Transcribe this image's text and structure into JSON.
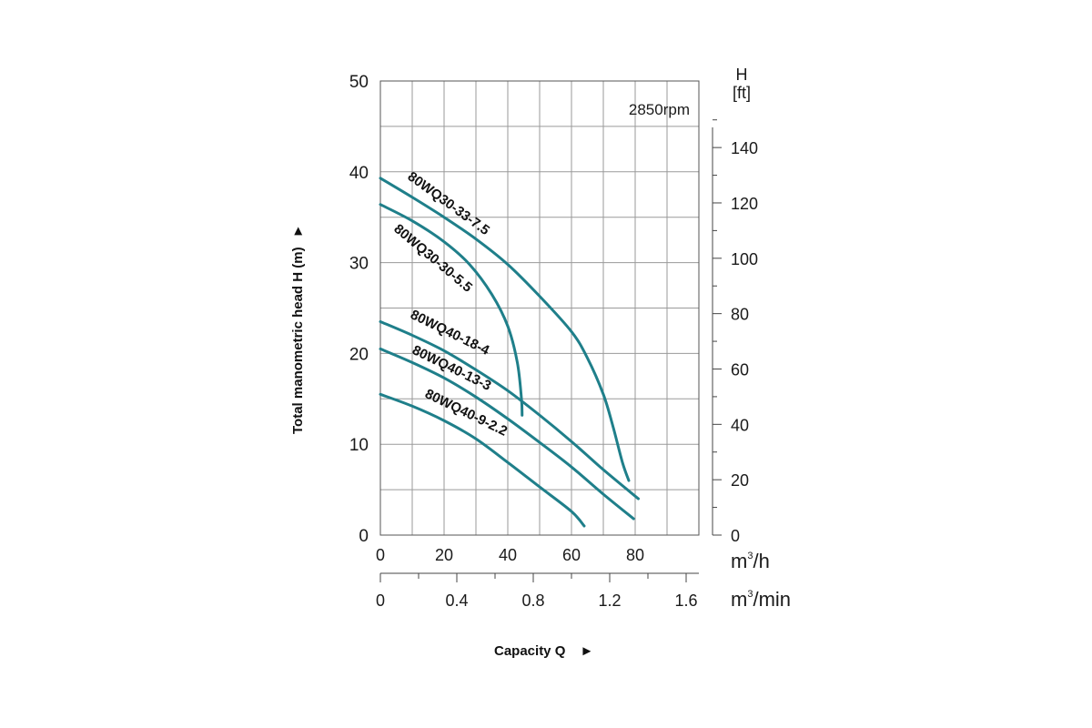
{
  "chart_data": {
    "type": "line",
    "speed_note": "2850rpm",
    "ylabel": "Total manometric head H (m)",
    "ylabel_arrow": "►",
    "xlabel": "Capacity Q",
    "xlabel_arrow": "►",
    "x_unit_m3h": {
      "base": "m",
      "sup": "3",
      "rest": "/h"
    },
    "x_unit_m3min": {
      "base": "m",
      "sup": "3",
      "rest": "/min"
    },
    "y_right_unit_top": "H",
    "y_right_unit_bottom": "[ft]",
    "xlim": [
      0,
      100
    ],
    "ylim": [
      0,
      50
    ],
    "grid": true,
    "y_ticks": [
      "0",
      "10",
      "20",
      "30",
      "40",
      "50"
    ],
    "y_ft_ticks": [
      "0",
      "20",
      "40",
      "60",
      "80",
      "100",
      "120",
      "140"
    ],
    "x_ticks_m3h": [
      "0",
      "20",
      "40",
      "60",
      "80"
    ],
    "x_ticks_m3min": [
      "0",
      "0.4",
      "0.8",
      "1.2",
      "1.6"
    ],
    "line_color": "#1f7f8a",
    "series": [
      {
        "name": "80WQ30-33-7.5",
        "points": [
          [
            0,
            39.3
          ],
          [
            10,
            37.2
          ],
          [
            20,
            35
          ],
          [
            30,
            32.6
          ],
          [
            40,
            29.8
          ],
          [
            50,
            26.3
          ],
          [
            60,
            22.4
          ],
          [
            65,
            19.5
          ],
          [
            70,
            15.5
          ],
          [
            73,
            12
          ],
          [
            76,
            8
          ],
          [
            78,
            6
          ]
        ]
      },
      {
        "name": "80WQ30-30-5.5",
        "points": [
          [
            0,
            36.4
          ],
          [
            10,
            34.6
          ],
          [
            20,
            32.3
          ],
          [
            28,
            29.8
          ],
          [
            35,
            26.5
          ],
          [
            40,
            23
          ],
          [
            43,
            19
          ],
          [
            44.3,
            15
          ],
          [
            44.5,
            13.2
          ]
        ]
      },
      {
        "name": "80WQ40-18-4",
        "points": [
          [
            0,
            23.5
          ],
          [
            10,
            22
          ],
          [
            20,
            20.3
          ],
          [
            30,
            18.2
          ],
          [
            40,
            15.9
          ],
          [
            50,
            13.2
          ],
          [
            60,
            10.3
          ],
          [
            70,
            7.2
          ],
          [
            81,
            4
          ]
        ]
      },
      {
        "name": "80WQ40-13-3",
        "points": [
          [
            0,
            20.5
          ],
          [
            10,
            19
          ],
          [
            20,
            17.3
          ],
          [
            30,
            15.2
          ],
          [
            40,
            12.8
          ],
          [
            50,
            10.2
          ],
          [
            60,
            7.5
          ],
          [
            70,
            4.5
          ],
          [
            79.5,
            1.8
          ]
        ]
      },
      {
        "name": "80WQ40-9-2.2",
        "points": [
          [
            0,
            15.5
          ],
          [
            10,
            14.2
          ],
          [
            20,
            12.6
          ],
          [
            30,
            10.6
          ],
          [
            40,
            8
          ],
          [
            50,
            5.3
          ],
          [
            60,
            2.6
          ],
          [
            64,
            1
          ]
        ]
      }
    ]
  }
}
